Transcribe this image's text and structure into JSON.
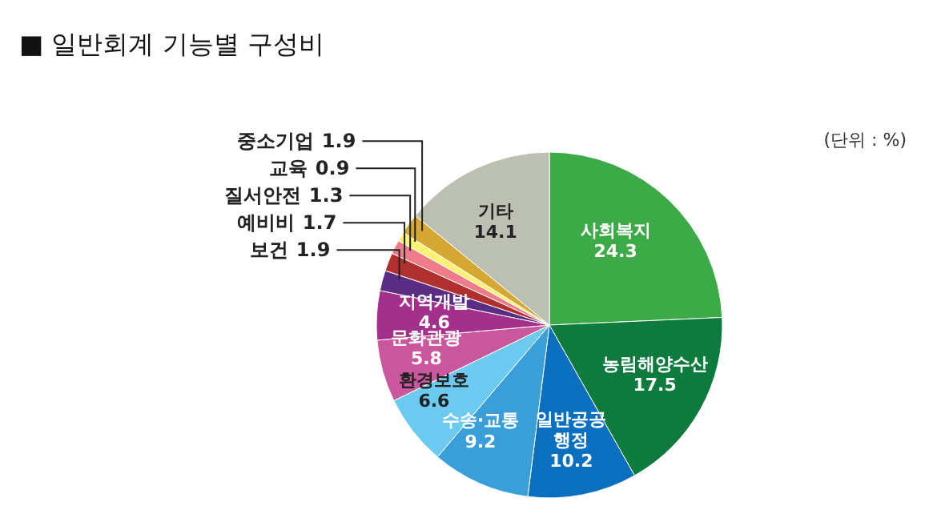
{
  "chart_data": {
    "type": "pie",
    "title": "■ 일반회계 기능별 구성비",
    "annotations": [
      "(단위 : %)"
    ],
    "categories": [
      "사회복지",
      "농림해양수산",
      "일반공공행정",
      "수송·교통",
      "환경보호",
      "문화관광",
      "지역개발",
      "보건",
      "예비비",
      "질서안전",
      "교육",
      "중소기업",
      "기타"
    ],
    "values": [
      24.3,
      17.5,
      10.2,
      9.2,
      6.6,
      5.8,
      4.6,
      1.9,
      1.7,
      1.3,
      0.9,
      1.9,
      14.1
    ],
    "colors": [
      "#3daa48",
      "#0d7a3e",
      "#0a6fbf",
      "#3a9fd8",
      "#6ccaf0",
      "#c9579e",
      "#a3308a",
      "#5a2d82",
      "#b03030",
      "#f07b8a",
      "#fff176",
      "#d4a832",
      "#bcc0b2"
    ],
    "data_labels": true,
    "legend": false
  }
}
